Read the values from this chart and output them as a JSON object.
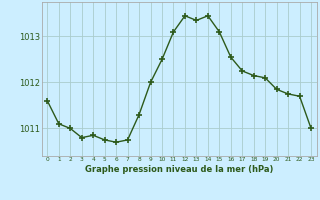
{
  "x": [
    0,
    1,
    2,
    3,
    4,
    5,
    6,
    7,
    8,
    9,
    10,
    11,
    12,
    13,
    14,
    15,
    16,
    17,
    18,
    19,
    20,
    21,
    22,
    23
  ],
  "y": [
    1011.6,
    1011.1,
    1011.0,
    1010.8,
    1010.85,
    1010.75,
    1010.7,
    1010.75,
    1011.3,
    1012.0,
    1012.5,
    1013.1,
    1013.45,
    1013.35,
    1013.45,
    1013.1,
    1012.55,
    1012.25,
    1012.15,
    1012.1,
    1011.85,
    1011.75,
    1011.7,
    1011.0
  ],
  "line_color": "#2d5a1b",
  "marker_color": "#2d5a1b",
  "bg_color": "#cceeff",
  "grid_color": "#aacccc",
  "border_color": "#aaaaaa",
  "xlabel": "Graphe pression niveau de la mer (hPa)",
  "xlabel_color": "#2d5a1b",
  "tick_label_color": "#2d5a1b",
  "ylabel_ticks": [
    1011,
    1012,
    1013
  ],
  "xlim": [
    -0.5,
    23.5
  ],
  "ylim": [
    1010.4,
    1013.75
  ],
  "xtick_labels": [
    "0",
    "1",
    "2",
    "3",
    "4",
    "5",
    "6",
    "7",
    "8",
    "9",
    "10",
    "11",
    "12",
    "13",
    "14",
    "15",
    "16",
    "17",
    "18",
    "19",
    "20",
    "21",
    "22",
    "23"
  ],
  "marker_size": 4,
  "line_width": 1.0
}
